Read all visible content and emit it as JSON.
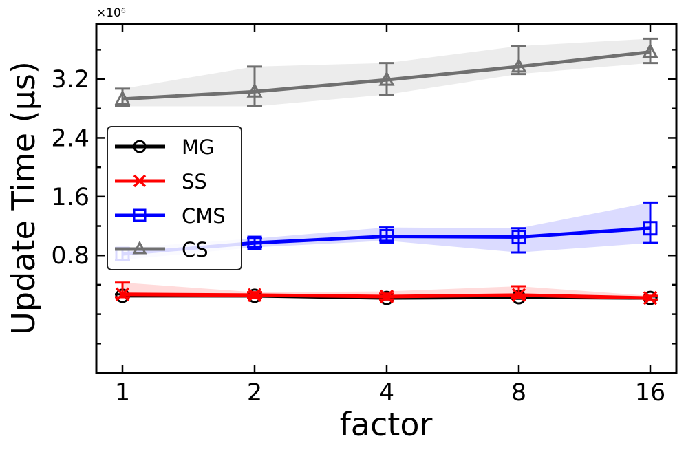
{
  "chart_data": {
    "type": "line",
    "title": "",
    "xlabel": "factor",
    "ylabel": "Update Time (μs)",
    "y_multiplier_text": "×10⁶",
    "categories": [
      "1",
      "2",
      "4",
      "8",
      "16"
    ],
    "ylim": [
      -0.8,
      3.95
    ],
    "yticks": [
      0.8,
      1.6,
      2.4,
      3.2
    ],
    "ytick_labels": [
      "0.8",
      "1.6",
      "2.4",
      "3.2"
    ],
    "legend_position": "center-left",
    "grid": false,
    "series": [
      {
        "name": "MG",
        "color": "#000000",
        "marker": "circle",
        "values": [
          0.25,
          0.25,
          0.22,
          0.23,
          0.22
        ],
        "err_low": [
          0.02,
          0.02,
          0.02,
          0.02,
          0.02
        ],
        "err_high": [
          0.02,
          0.02,
          0.02,
          0.02,
          0.02
        ],
        "band_low": [
          0.23,
          0.23,
          0.2,
          0.21,
          0.2
        ],
        "band_high": [
          0.28,
          0.27,
          0.25,
          0.26,
          0.24
        ]
      },
      {
        "name": "SS",
        "color": "#ff0000",
        "marker": "x",
        "values": [
          0.27,
          0.26,
          0.24,
          0.26,
          0.22
        ],
        "err_low": [
          0.04,
          0.04,
          0.04,
          0.04,
          0.02
        ],
        "err_high": [
          0.16,
          0.04,
          0.04,
          0.12,
          0.03
        ],
        "band_low": [
          0.23,
          0.22,
          0.2,
          0.22,
          0.2
        ],
        "band_high": [
          0.43,
          0.3,
          0.31,
          0.38,
          0.25
        ]
      },
      {
        "name": "CMS",
        "color": "#0000ff",
        "marker": "square",
        "values": [
          0.82,
          0.97,
          1.06,
          1.05,
          1.17
        ],
        "err_low": [
          0.08,
          0.06,
          0.06,
          0.21,
          0.2
        ],
        "err_high": [
          0.08,
          0.06,
          0.12,
          0.12,
          0.35
        ],
        "band_low": [
          0.74,
          0.91,
          1.0,
          0.84,
          0.97
        ],
        "band_high": [
          0.9,
          1.03,
          1.18,
          1.17,
          1.52
        ]
      },
      {
        "name": "CS",
        "color": "#707070",
        "marker": "triangle",
        "values": [
          2.93,
          3.03,
          3.19,
          3.37,
          3.57
        ],
        "err_low": [
          0.1,
          0.2,
          0.2,
          0.1,
          0.15
        ],
        "err_high": [
          0.14,
          0.34,
          0.23,
          0.28,
          0.18
        ],
        "band_low": [
          2.83,
          2.83,
          2.99,
          3.27,
          3.42
        ],
        "band_high": [
          3.07,
          3.37,
          3.42,
          3.65,
          3.75
        ]
      }
    ]
  }
}
